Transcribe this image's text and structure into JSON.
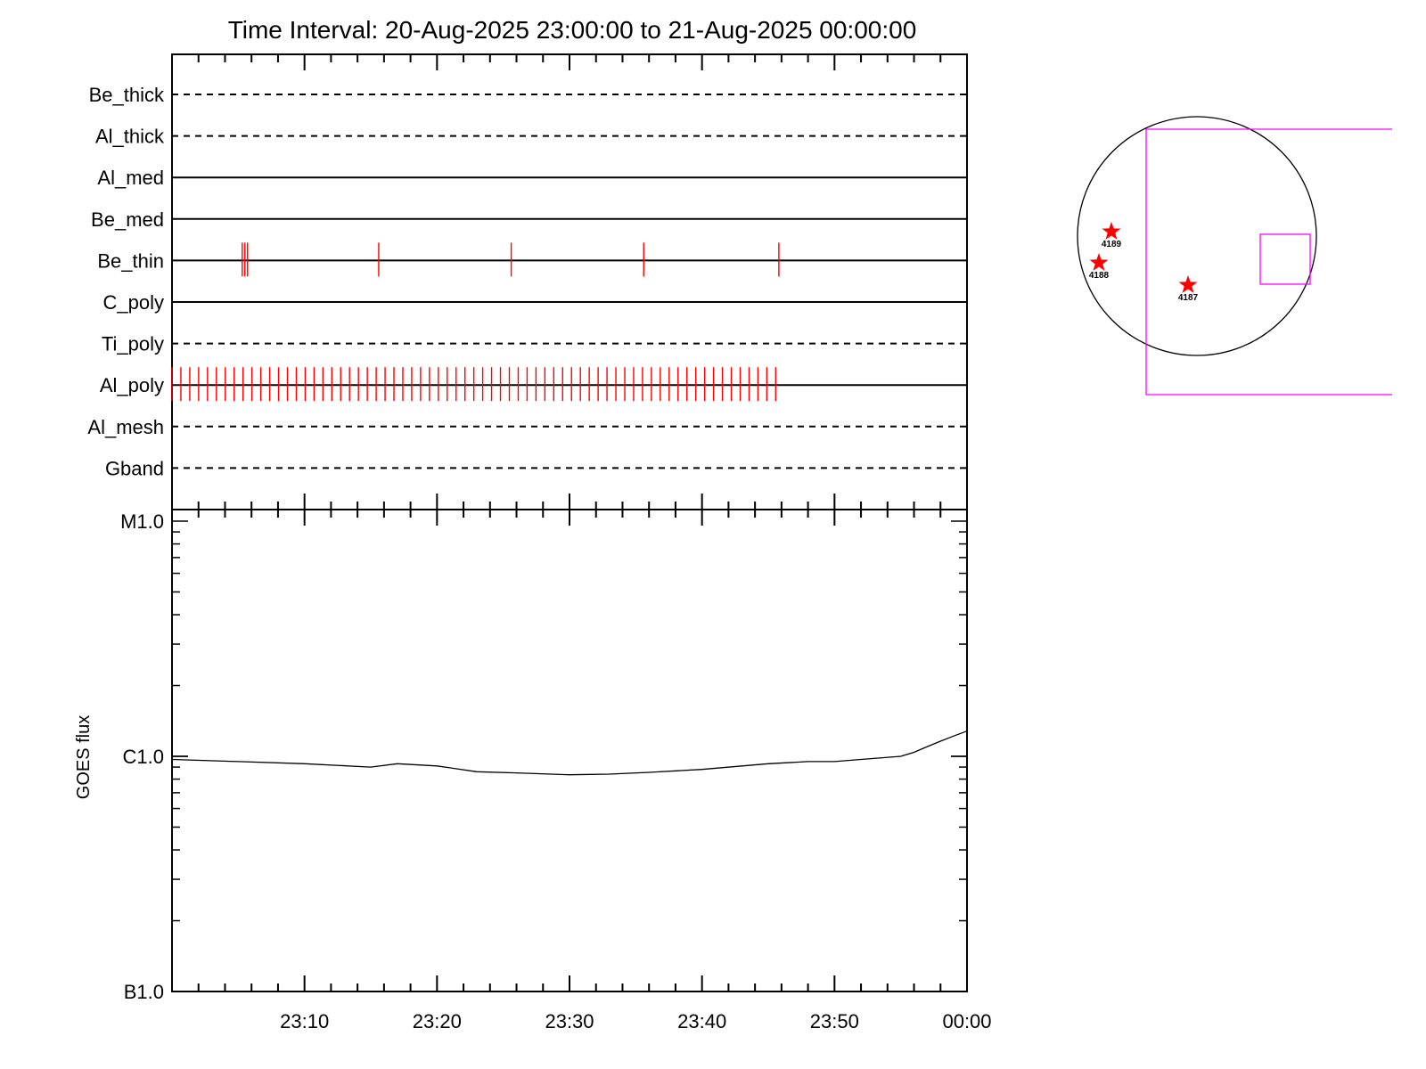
{
  "chart_data": [
    {
      "type": "timeline",
      "title": "Time Interval: 20-Aug-2025 23:00:00 to 21-Aug-2025 00:00:00",
      "x_range": [
        "2025-08-20T23:00:00",
        "2025-08-21T00:00:00"
      ],
      "x_tick_labels": [
        "23:10",
        "23:20",
        "23:30",
        "23:40",
        "23:50",
        "00:00"
      ],
      "channels": [
        {
          "name": "Be_thick",
          "line": "dashed",
          "events_min": []
        },
        {
          "name": "Al_thick",
          "line": "dashed",
          "events_min": []
        },
        {
          "name": "Al_med",
          "line": "solid",
          "events_min": []
        },
        {
          "name": "Be_med",
          "line": "solid",
          "events_min": []
        },
        {
          "name": "Be_thin",
          "line": "solid",
          "events_min": [
            5.3,
            5.5,
            5.7,
            15.6,
            25.6,
            35.6,
            45.8
          ]
        },
        {
          "name": "C_poly",
          "line": "solid",
          "events_min": []
        },
        {
          "name": "Ti_poly",
          "line": "dashed",
          "events_min": []
        },
        {
          "name": "Al_poly",
          "line": "solid",
          "event_range_min": [
            0,
            45.7
          ],
          "event_step_min": 0.67
        },
        {
          "name": "Al_mesh",
          "line": "dashed",
          "events_min": []
        },
        {
          "name": "Gband",
          "line": "dashed",
          "events_min": []
        }
      ],
      "event_color": "#ff0000"
    },
    {
      "type": "line",
      "ylabel": "GOES flux",
      "y_scale": "log",
      "y_range": [
        1e-07,
        1e-05
      ],
      "y_tick_labels": [
        "M1.0",
        "C1.0",
        "B1.0"
      ],
      "x_tick_labels": [
        "23:10",
        "23:20",
        "23:30",
        "23:40",
        "23:50",
        "00:00"
      ],
      "series": [
        {
          "x_min": [
            0,
            5,
            10,
            15,
            17,
            20,
            23,
            26,
            30,
            33,
            36,
            40,
            45,
            48,
            50,
            52,
            55,
            56,
            57,
            58,
            59,
            60
          ],
          "values": [
            9.7e-07,
            9.5e-07,
            9.3e-07,
            9e-07,
            9.3e-07,
            9.1e-07,
            8.6e-07,
            8.5e-07,
            8.35e-07,
            8.4e-07,
            8.55e-07,
            8.8e-07,
            9.3e-07,
            9.5e-07,
            9.5e-07,
            9.7e-07,
            1e-06,
            1.04e-06,
            1.1e-06,
            1.16e-06,
            1.22e-06,
            1.28e-06
          ]
        }
      ]
    }
  ],
  "disk": {
    "active_regions": [
      {
        "label": "4189"
      },
      {
        "label": "4188"
      },
      {
        "label": "4187"
      }
    ],
    "marker_color": "#ff0000",
    "fov_color": "#ff00ff",
    "limb_color": "#000000"
  }
}
